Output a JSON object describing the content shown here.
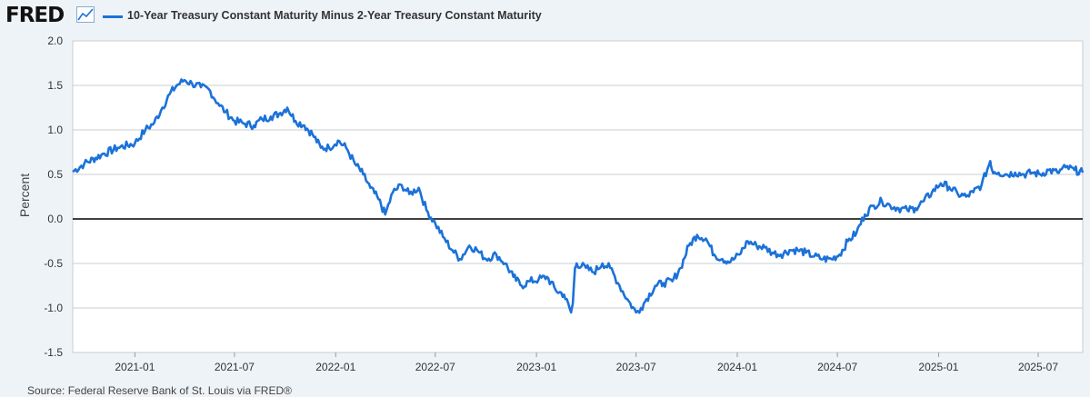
{
  "header": {
    "logo_text": "FRED",
    "logo_icon": "trend-line-icon",
    "series_label": "10-Year Treasury Constant Maturity Minus 2-Year Treasury Constant Maturity"
  },
  "footer": {
    "source_text": "Source: Federal Reserve Bank of St. Louis via FRED®"
  },
  "colors": {
    "line": "#1b72d8",
    "zero_line": "#000000",
    "grid": "#c9ccd1",
    "plot_bg": "#ffffff",
    "page_bg": "#eef3f8"
  },
  "chart_data": {
    "type": "line",
    "title": "10-Year Treasury Constant Maturity Minus 2-Year Treasury Constant Maturity",
    "xlabel": "",
    "ylabel": "Percent",
    "ylim": [
      -1.5,
      2.0
    ],
    "yticks": [
      2.0,
      1.5,
      1.0,
      0.5,
      0.0,
      -0.5,
      -1.0,
      -1.5
    ],
    "ytick_labels": [
      "2.0",
      "1.5",
      "1.0",
      "0.5",
      "0.0",
      "-0.5",
      "-1.0",
      "-1.5"
    ],
    "xlim": [
      "2020-09-10",
      "2025-09-20"
    ],
    "xticks": [
      "2021-01",
      "2021-07",
      "2022-01",
      "2022-07",
      "2023-01",
      "2023-07",
      "2024-01",
      "2024-07",
      "2025-01",
      "2025-07"
    ],
    "grid": true,
    "series": [
      {
        "name": "10-Year Treasury Constant Maturity Minus 2-Year Treasury Constant Maturity",
        "x": [
          "2020-09-10",
          "2020-10-01",
          "2020-11-01",
          "2020-12-01",
          "2021-01-01",
          "2021-01-20",
          "2021-02-05",
          "2021-02-20",
          "2021-03-05",
          "2021-03-18",
          "2021-04-01",
          "2021-04-15",
          "2021-05-01",
          "2021-05-15",
          "2021-06-01",
          "2021-06-15",
          "2021-07-01",
          "2021-07-20",
          "2021-08-05",
          "2021-08-20",
          "2021-09-05",
          "2021-09-20",
          "2021-10-05",
          "2021-10-20",
          "2021-11-05",
          "2021-11-20",
          "2021-12-05",
          "2021-12-20",
          "2022-01-05",
          "2022-01-20",
          "2022-02-05",
          "2022-02-20",
          "2022-03-05",
          "2022-03-20",
          "2022-04-01",
          "2022-04-15",
          "2022-05-01",
          "2022-05-15",
          "2022-06-01",
          "2022-06-15",
          "2022-07-01",
          "2022-07-15",
          "2022-08-01",
          "2022-08-15",
          "2022-09-01",
          "2022-09-15",
          "2022-10-01",
          "2022-10-20",
          "2022-11-05",
          "2022-11-20",
          "2022-12-05",
          "2022-12-20",
          "2023-01-05",
          "2023-01-20",
          "2023-02-05",
          "2023-02-20",
          "2023-03-05",
          "2023-03-08",
          "2023-03-12",
          "2023-03-15",
          "2023-04-01",
          "2023-04-15",
          "2023-05-01",
          "2023-05-15",
          "2023-06-01",
          "2023-06-15",
          "2023-07-01",
          "2023-07-10",
          "2023-07-20",
          "2023-08-05",
          "2023-08-20",
          "2023-09-05",
          "2023-09-20",
          "2023-10-05",
          "2023-10-20",
          "2023-11-05",
          "2023-11-20",
          "2023-12-05",
          "2023-12-20",
          "2024-01-05",
          "2024-01-20",
          "2024-02-05",
          "2024-02-20",
          "2024-03-05",
          "2024-03-20",
          "2024-04-05",
          "2024-04-20",
          "2024-05-05",
          "2024-05-20",
          "2024-06-05",
          "2024-06-20",
          "2024-07-05",
          "2024-07-20",
          "2024-08-05",
          "2024-08-20",
          "2024-09-05",
          "2024-09-20",
          "2024-10-05",
          "2024-10-20",
          "2024-11-05",
          "2024-11-20",
          "2024-12-05",
          "2024-12-20",
          "2025-01-05",
          "2025-01-20",
          "2025-02-05",
          "2025-02-20",
          "2025-03-05",
          "2025-03-20",
          "2025-04-05",
          "2025-04-08",
          "2025-04-20",
          "2025-05-05",
          "2025-05-20",
          "2025-06-05",
          "2025-06-20",
          "2025-07-05",
          "2025-07-20",
          "2025-08-05",
          "2025-08-20",
          "2025-09-05",
          "2025-09-20"
        ],
        "values": [
          0.53,
          0.62,
          0.72,
          0.8,
          0.85,
          1.0,
          1.08,
          1.25,
          1.4,
          1.5,
          1.56,
          1.52,
          1.48,
          1.46,
          1.3,
          1.2,
          1.1,
          1.07,
          1.05,
          1.12,
          1.15,
          1.18,
          1.25,
          1.1,
          1.05,
          0.95,
          0.8,
          0.8,
          0.88,
          0.8,
          0.62,
          0.5,
          0.35,
          0.22,
          0.05,
          0.3,
          0.38,
          0.28,
          0.35,
          0.1,
          -0.05,
          -0.2,
          -0.35,
          -0.45,
          -0.3,
          -0.35,
          -0.45,
          -0.4,
          -0.5,
          -0.65,
          -0.75,
          -0.7,
          -0.68,
          -0.65,
          -0.8,
          -0.85,
          -1.05,
          -0.95,
          -0.55,
          -0.5,
          -0.55,
          -0.6,
          -0.5,
          -0.55,
          -0.75,
          -0.9,
          -1.05,
          -1.0,
          -0.9,
          -0.75,
          -0.72,
          -0.7,
          -0.55,
          -0.3,
          -0.18,
          -0.22,
          -0.4,
          -0.45,
          -0.48,
          -0.4,
          -0.25,
          -0.3,
          -0.32,
          -0.38,
          -0.4,
          -0.35,
          -0.35,
          -0.38,
          -0.42,
          -0.45,
          -0.45,
          -0.4,
          -0.25,
          -0.15,
          0.05,
          0.15,
          0.2,
          0.15,
          0.12,
          0.1,
          0.12,
          0.2,
          0.3,
          0.4,
          0.36,
          0.28,
          0.25,
          0.3,
          0.38,
          0.65,
          0.55,
          0.52,
          0.5,
          0.52,
          0.5,
          0.52,
          0.5,
          0.55,
          0.52,
          0.58,
          0.55,
          0.52
        ]
      }
    ]
  }
}
